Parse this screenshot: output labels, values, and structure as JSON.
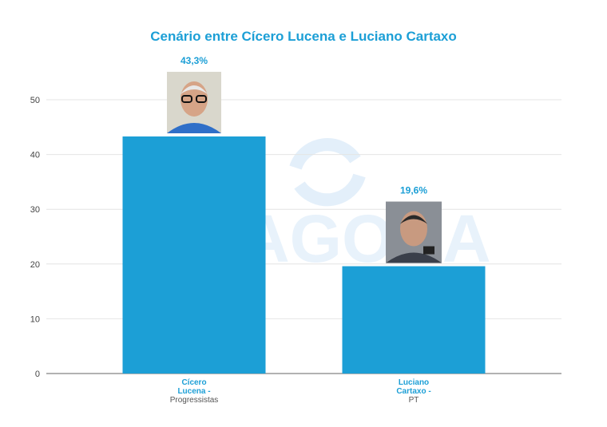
{
  "chart_data": {
    "type": "bar",
    "title": "Cenário entre Cícero Lucena e Luciano Cartaxo",
    "categories": [
      [
        "Cícero",
        "Lucena -",
        "Progressistas"
      ],
      [
        "Luciano",
        "Cartaxo -",
        "PT"
      ]
    ],
    "values": [
      43.3,
      19.6
    ],
    "value_labels": [
      "43,3%",
      "19,6%"
    ],
    "yticks": [
      0,
      10,
      20,
      30,
      40,
      50
    ],
    "ylim": [
      0,
      55
    ],
    "grid": true,
    "bar_color": "#1c9fd6"
  },
  "watermark": {
    "text": "PBAGORA",
    "icon": "circular-arrows-icon"
  },
  "photos": [
    "portrait-photo",
    "portrait-photo"
  ]
}
